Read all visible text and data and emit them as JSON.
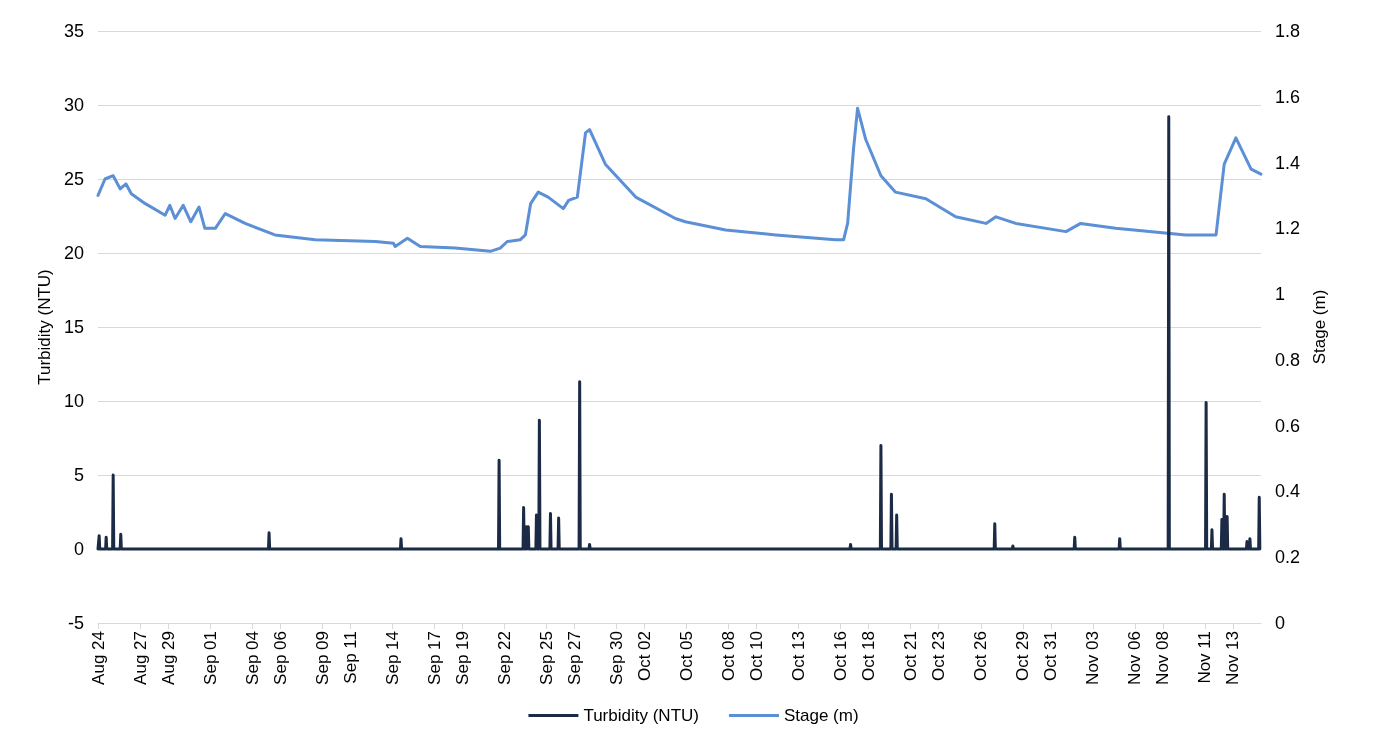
{
  "chart_data": {
    "type": "line",
    "xlabel": null,
    "ylabel": "Turbidity (NTU)",
    "y2label": "Stage (m)",
    "legend": "bottom",
    "grid": "y",
    "marker": "none",
    "line_style": "solid",
    "xlim": [
      "--08-24",
      "--11-15"
    ],
    "xticks": [
      {
        "value": "--08-24",
        "label": "Aug 24"
      },
      {
        "value": "--08-27",
        "label": "Aug 27"
      },
      {
        "value": "--08-29",
        "label": "Aug 29"
      },
      {
        "value": "--09-01",
        "label": "Sep 01"
      },
      {
        "value": "--09-04",
        "label": "Sep 04"
      },
      {
        "value": "--09-06",
        "label": "Sep 06"
      },
      {
        "value": "--09-09",
        "label": "Sep 09"
      },
      {
        "value": "--09-11",
        "label": "Sep 11"
      },
      {
        "value": "--09-14",
        "label": "Sep 14"
      },
      {
        "value": "--09-17",
        "label": "Sep 17"
      },
      {
        "value": "--09-19",
        "label": "Sep 19"
      },
      {
        "value": "--09-22",
        "label": "Sep 22"
      },
      {
        "value": "--09-25",
        "label": "Sep 25"
      },
      {
        "value": "--09-27",
        "label": "Sep 27"
      },
      {
        "value": "--09-30",
        "label": "Sep 30"
      },
      {
        "value": "--10-02",
        "label": "Oct 02"
      },
      {
        "value": "--10-05",
        "label": "Oct 05"
      },
      {
        "value": "--10-08",
        "label": "Oct 08"
      },
      {
        "value": "--10-10",
        "label": "Oct 10"
      },
      {
        "value": "--10-13",
        "label": "Oct 13"
      },
      {
        "value": "--10-16",
        "label": "Oct 16"
      },
      {
        "value": "--10-18",
        "label": "Oct 18"
      },
      {
        "value": "--10-21",
        "label": "Oct 21"
      },
      {
        "value": "--10-23",
        "label": "Oct 23"
      },
      {
        "value": "--10-26",
        "label": "Oct 26"
      },
      {
        "value": "--10-29",
        "label": "Oct 29"
      },
      {
        "value": "--10-31",
        "label": "Oct 31"
      },
      {
        "value": "--11-03",
        "label": "Nov 03"
      },
      {
        "value": "--11-06",
        "label": "Nov 06"
      },
      {
        "value": "--11-08",
        "label": "Nov 08"
      },
      {
        "value": "--11-11",
        "label": "Nov 11"
      },
      {
        "value": "--11-13",
        "label": "Nov 13"
      }
    ],
    "ylim": [
      -5,
      35
    ],
    "yticks": [
      -5,
      0,
      5,
      10,
      15,
      20,
      25,
      30,
      35
    ],
    "y2lim": [
      0,
      1.8
    ],
    "y2ticks": [
      0,
      0.2,
      0.4,
      0.6,
      0.8,
      1,
      1.2,
      1.4,
      1.6,
      1.8
    ],
    "series": [
      {
        "name": "Turbidity (NTU)",
        "color": "#1c2b45",
        "x": [
          "--08-24T00:00",
          "--08-24T01:00",
          "--08-24T02:00",
          "--08-24T03:00",
          "--08-24T13:00",
          "--08-24T14:00",
          "--08-24T15:00",
          "--08-25T01:00",
          "--08-25T02:00",
          "--08-25T03:00",
          "--08-25T14:00",
          "--08-25T15:00",
          "--08-25T16:00",
          "--09-05T04:00",
          "--09-05T05:00",
          "--09-05T06:00",
          "--09-14T14:00",
          "--09-14T15:00",
          "--09-14T16:00",
          "--09-21T14:00",
          "--09-21T15:00",
          "--09-21T16:00",
          "--09-23T08:00",
          "--09-23T09:00",
          "--09-23T10:00",
          "--09-23T13:00",
          "--09-23T14:00",
          "--09-23T15:00",
          "--09-23T16:00",
          "--09-23T17:00",
          "--09-23T18:00",
          "--09-24T06:00",
          "--09-24T07:00",
          "--09-24T08:00",
          "--09-24T11:00",
          "--09-24T12:00",
          "--09-24T13:00",
          "--09-25T06:00",
          "--09-25T07:00",
          "--09-25T08:00",
          "--09-25T20:00",
          "--09-25T21:00",
          "--09-25T22:00",
          "--09-27T08:00",
          "--09-27T09:00",
          "--09-27T10:00",
          "--09-28T01:00",
          "--09-28T02:00",
          "--09-28T03:00",
          "--10-16T16:00",
          "--10-16T17:00",
          "--10-16T18:00",
          "--10-18T20:00",
          "--10-18T21:00",
          "--10-18T22:00",
          "--10-19T14:00",
          "--10-19T15:00",
          "--10-19T16:00",
          "--10-19T23:00",
          "--10-20T00:00",
          "--10-20T01:00",
          "--10-26T23:00",
          "--10-27T00:00",
          "--10-27T01:00",
          "--10-28T06:00",
          "--10-28T07:00",
          "--10-28T08:00",
          "--11-01T16:00",
          "--11-01T17:00",
          "--11-01T18:00",
          "--11-04T21:00",
          "--11-04T22:00",
          "--11-04T23:00",
          "--11-08T09:00",
          "--11-08T10:00",
          "--11-08T11:00",
          "--11-11T01:00",
          "--11-11T02:00",
          "--11-11T03:00",
          "--11-11T11:00",
          "--11-11T12:00",
          "--11-11T13:00",
          "--11-12T04:00",
          "--11-12T05:00",
          "--11-12T06:00",
          "--11-12T08:00",
          "--11-12T09:00",
          "--11-12T10:00",
          "--11-12T13:00",
          "--11-12T14:00",
          "--11-12T15:00",
          "--11-13T23:00",
          "--11-14T00:00",
          "--11-14T01:00",
          "--11-14T04:00",
          "--11-14T05:00",
          "--11-14T06:00",
          "--11-14T20:00",
          "--11-14T21:00",
          "--11-14T22:00"
        ],
        "values": [
          0,
          0,
          0.9,
          0,
          0,
          0.8,
          0,
          0,
          5.0,
          0,
          0,
          1.0,
          0,
          0,
          1.1,
          0,
          0,
          0.7,
          0,
          0,
          6.0,
          0,
          0,
          2.8,
          0,
          0,
          1.5,
          0,
          0,
          1.5,
          0,
          0,
          2.3,
          0,
          0,
          8.7,
          0,
          0,
          2.4,
          0,
          0,
          2.1,
          0,
          0,
          11.3,
          0,
          0,
          0.3,
          0,
          0,
          0.3,
          0,
          0,
          7.0,
          0,
          0,
          3.7,
          0,
          0,
          2.3,
          0,
          0,
          1.7,
          0,
          0,
          0.2,
          0,
          0,
          0.8,
          0,
          0,
          0.7,
          0,
          0,
          29.2,
          0,
          0,
          9.9,
          0,
          0,
          1.3,
          0,
          0,
          2.0,
          0,
          0,
          3.7,
          0,
          0,
          2.2,
          0,
          0,
          0.5,
          0,
          0,
          0.7,
          0,
          0,
          3.5,
          0
        ]
      },
      {
        "name": "Stage (m)",
        "color": "#5b8fd6",
        "axis": "y2",
        "x": [
          "--08-24T00:00",
          "--08-24T12:00",
          "--08-25T02:00",
          "--08-25T14:00",
          "--08-26T00:00",
          "--08-26T09:00",
          "--08-27T09:00",
          "--08-28T19:00",
          "--08-29T03:00",
          "--08-29T12:00",
          "--08-30T02:00",
          "--08-30T15:00",
          "--08-31T05:00",
          "--08-31T15:00",
          "--09-01T09:00",
          "--09-02T02:00",
          "--09-03T12:00",
          "--09-05T15:00",
          "--09-08T12:00",
          "--09-12T19:00",
          "--09-14T02:00",
          "--09-14T05:00",
          "--09-15T02:00",
          "--09-16T00:00",
          "--09-18T12:00",
          "--09-21T00:00",
          "--09-21T17:00",
          "--09-22T05:00",
          "--09-23T03:00",
          "--09-23T12:00",
          "--09-23T21:00",
          "--09-24T10:00",
          "--09-25T03:00",
          "--09-26T05:00",
          "--09-26T14:00",
          "--09-27T05:00",
          "--09-27T19:00",
          "--09-28T02:00",
          "--09-29T05:00",
          "--10-01T09:00",
          "--10-04T05:00",
          "--10-04T22:00",
          "--10-07T19:00",
          "--10-11T09:00",
          "--10-15T15:00",
          "--10-16T05:00",
          "--10-16T12:00",
          "--10-16T22:00",
          "--10-17T05:00",
          "--10-17T19:00",
          "--10-18T21:00",
          "--10-19T22:00",
          "--10-22T02:00",
          "--10-24T05:00",
          "--10-26T09:00",
          "--10-27T02:00",
          "--10-28T12:00",
          "--11-01T02:00",
          "--11-02T03:00",
          "--11-04T15:00",
          "--11-09T15:00",
          "--11-11T19:00",
          "--11-12T09:00",
          "--11-13T05:00",
          "--11-14T07:00",
          "--11-15T00:00"
        ],
        "values": [
          1.3,
          1.35,
          1.36,
          1.32,
          1.335,
          1.305,
          1.275,
          1.24,
          1.27,
          1.23,
          1.27,
          1.22,
          1.265,
          1.2,
          1.2,
          1.245,
          1.215,
          1.18,
          1.165,
          1.16,
          1.155,
          1.145,
          1.17,
          1.145,
          1.14,
          1.13,
          1.14,
          1.16,
          1.165,
          1.18,
          1.275,
          1.31,
          1.295,
          1.26,
          1.285,
          1.295,
          1.49,
          1.5,
          1.395,
          1.295,
          1.23,
          1.22,
          1.195,
          1.18,
          1.165,
          1.165,
          1.215,
          1.44,
          1.565,
          1.47,
          1.36,
          1.31,
          1.29,
          1.235,
          1.215,
          1.235,
          1.215,
          1.19,
          1.215,
          1.2,
          1.18,
          1.18,
          1.395,
          1.475,
          1.38,
          1.365
        ]
      }
    ]
  }
}
